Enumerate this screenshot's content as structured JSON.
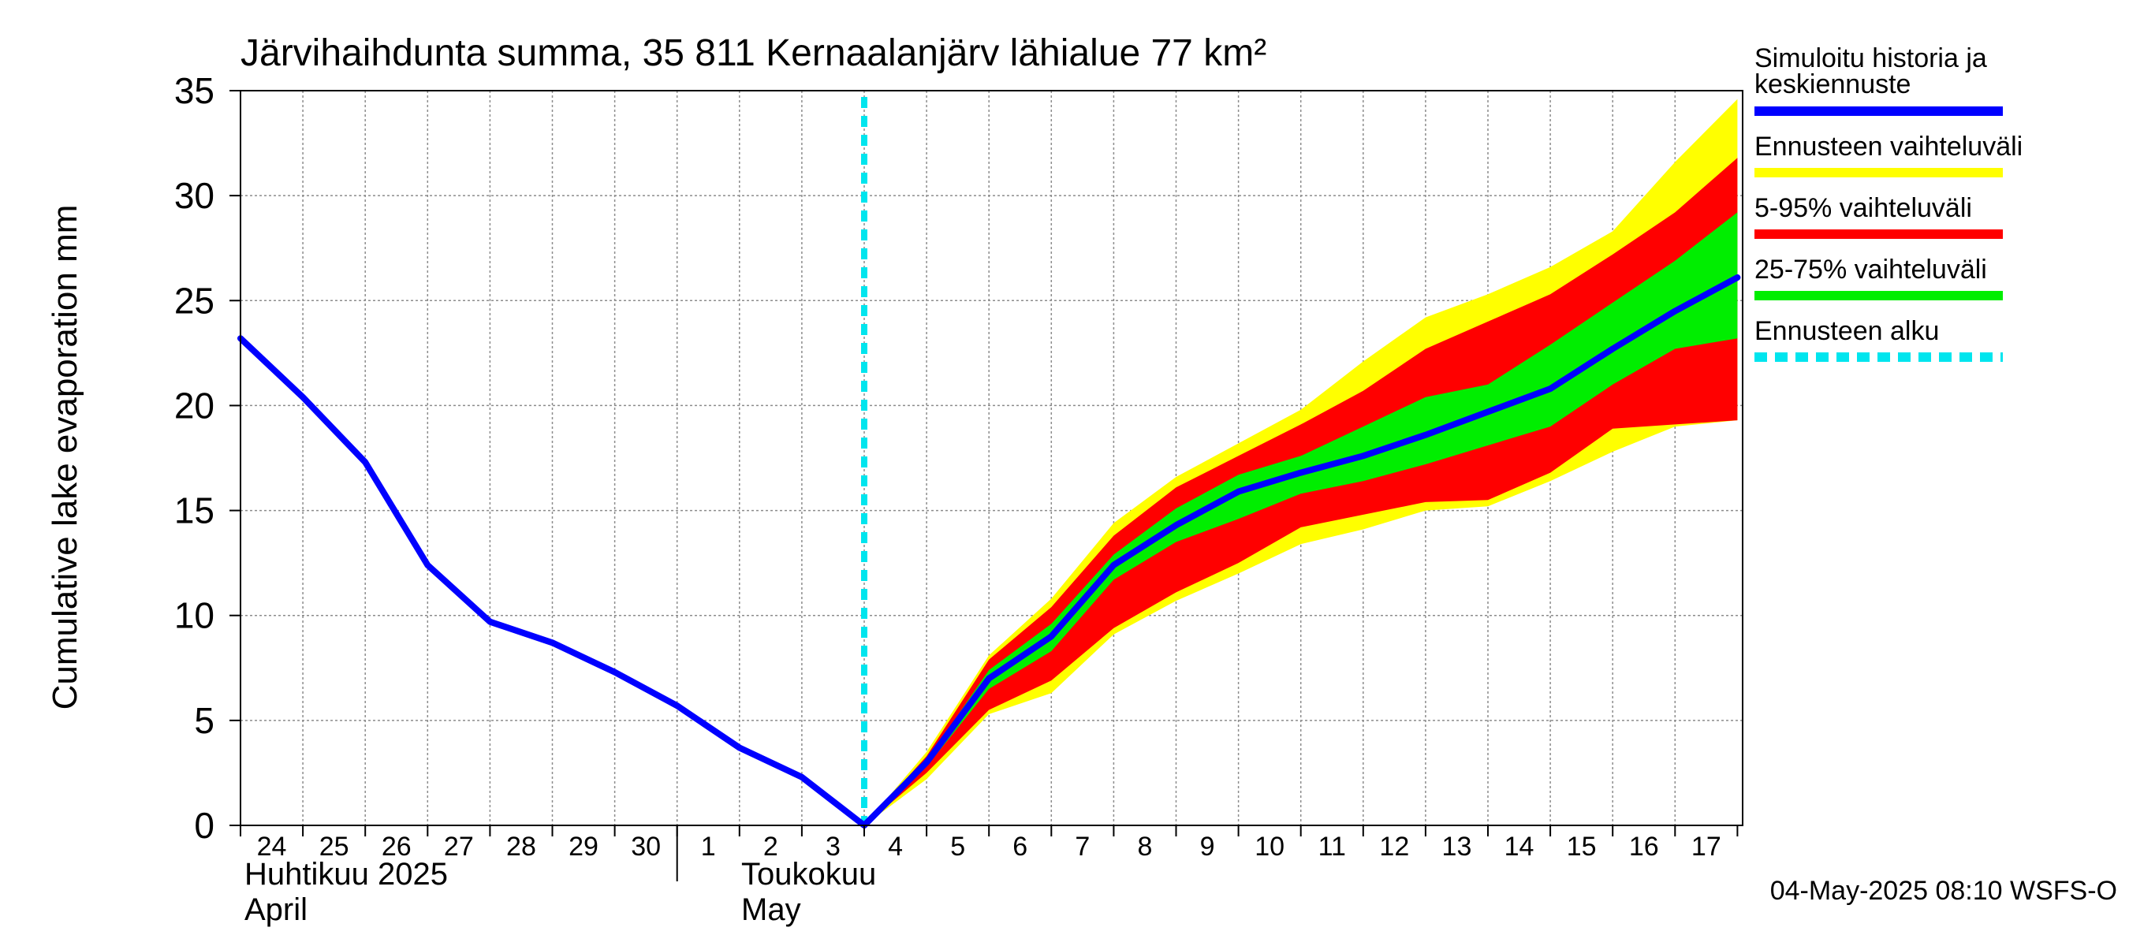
{
  "chart_data": {
    "type": "area",
    "title": "Järvihaihdunta summa, 35 811 Kernaalanjärv lähialue 77 km²",
    "ylabel": "Cumulative lake evaporation   mm",
    "ylim": [
      0,
      35
    ],
    "y_ticks": [
      "0",
      "5",
      "10",
      "15",
      "20",
      "25",
      "30",
      "35"
    ],
    "x_range": [
      "2025-04-24",
      "2025-05-17"
    ],
    "x_day_labels": [
      "24",
      "25",
      "26",
      "27",
      "28",
      "29",
      "30",
      "1",
      "2",
      "3",
      "4",
      "5",
      "6",
      "7",
      "8",
      "9",
      "10",
      "11",
      "12",
      "13",
      "14",
      "15",
      "16",
      "17"
    ],
    "month_labels": [
      {
        "fi": "Huhtikuu  2025",
        "en": "April"
      },
      {
        "fi": "Toukokuu",
        "en": "May"
      }
    ],
    "grid": true,
    "legend_position": "right",
    "forecast_start": "2025-05-04",
    "series": [
      {
        "name": "Simuloitu historia ja keskiennuste",
        "color": "#0000ff",
        "x": [
          "2025-04-24",
          "2025-04-25",
          "2025-04-26",
          "2025-04-27",
          "2025-04-28",
          "2025-04-29",
          "2025-04-30",
          "2025-05-01",
          "2025-05-02",
          "2025-05-03",
          "2025-05-04",
          "2025-05-05",
          "2025-05-06",
          "2025-05-07",
          "2025-05-08",
          "2025-05-09",
          "2025-05-10",
          "2025-05-11",
          "2025-05-12",
          "2025-05-13",
          "2025-05-14",
          "2025-05-15",
          "2025-05-16",
          "2025-05-17",
          "2025-05-18"
        ],
        "y": [
          23.2,
          20.4,
          17.3,
          12.4,
          9.7,
          8.7,
          7.3,
          5.7,
          3.7,
          2.3,
          0.0,
          3.0,
          7.0,
          9.0,
          12.4,
          14.3,
          15.9,
          16.8,
          17.6,
          18.6,
          19.7,
          20.8,
          22.7,
          24.5,
          26.1
        ]
      },
      {
        "name": "Ennusteen vaihteluväli",
        "color": "#ffff00",
        "x": [
          "2025-05-04",
          "2025-05-05",
          "2025-05-06",
          "2025-05-07",
          "2025-05-08",
          "2025-05-09",
          "2025-05-10",
          "2025-05-11",
          "2025-05-12",
          "2025-05-13",
          "2025-05-14",
          "2025-05-15",
          "2025-05-16",
          "2025-05-17",
          "2025-05-18"
        ],
        "low": [
          0.0,
          2.2,
          5.3,
          6.3,
          9.1,
          10.7,
          12.0,
          13.4,
          14.1,
          15.0,
          15.2,
          16.4,
          17.8,
          19.0,
          19.3
        ],
        "high": [
          0.0,
          3.5,
          8.1,
          10.8,
          14.4,
          16.6,
          18.2,
          19.8,
          22.1,
          24.2,
          25.3,
          26.6,
          28.3,
          31.6,
          34.6
        ]
      },
      {
        "name": "5-95% vaihteluväli",
        "color": "#ff0000",
        "x": [
          "2025-05-04",
          "2025-05-05",
          "2025-05-06",
          "2025-05-07",
          "2025-05-08",
          "2025-05-09",
          "2025-05-10",
          "2025-05-11",
          "2025-05-12",
          "2025-05-13",
          "2025-05-14",
          "2025-05-15",
          "2025-05-16",
          "2025-05-17",
          "2025-05-18"
        ],
        "low": [
          0.0,
          2.5,
          5.5,
          6.9,
          9.4,
          11.1,
          12.5,
          14.2,
          14.8,
          15.4,
          15.5,
          16.8,
          18.9,
          19.1,
          19.3
        ],
        "high": [
          0.0,
          3.3,
          7.9,
          10.4,
          13.8,
          16.1,
          17.6,
          19.1,
          20.7,
          22.7,
          24.0,
          25.3,
          27.2,
          29.2,
          31.8
        ]
      },
      {
        "name": "25-75% vaihteluväli",
        "color": "#00ee00",
        "x": [
          "2025-05-04",
          "2025-05-05",
          "2025-05-06",
          "2025-05-07",
          "2025-05-08",
          "2025-05-09",
          "2025-05-10",
          "2025-05-11",
          "2025-05-12",
          "2025-05-13",
          "2025-05-14",
          "2025-05-15",
          "2025-05-16",
          "2025-05-17",
          "2025-05-18"
        ],
        "low": [
          0.0,
          2.8,
          6.5,
          8.3,
          11.7,
          13.5,
          14.6,
          15.8,
          16.4,
          17.2,
          18.1,
          19.0,
          21.0,
          22.7,
          23.2
        ],
        "high": [
          0.0,
          3.1,
          7.4,
          9.6,
          12.9,
          15.1,
          16.7,
          17.6,
          19.0,
          20.4,
          21.0,
          22.9,
          24.9,
          26.9,
          29.2
        ]
      }
    ],
    "legend": [
      {
        "label": "Simuloitu historia ja\nkeskiennuste",
        "color": "#0000ff",
        "style": "solid"
      },
      {
        "label": "Ennusteen vaihteluväli",
        "color": "#ffff00",
        "style": "solid"
      },
      {
        "label": "5-95% vaihteluväli",
        "color": "#ff0000",
        "style": "solid"
      },
      {
        "label": "25-75% vaihteluväli",
        "color": "#00ee00",
        "style": "solid"
      },
      {
        "label": "Ennusteen alku",
        "color": "#00e5ee",
        "style": "dashed"
      }
    ],
    "footer": "04-May-2025 08:10 WSFS-O"
  }
}
